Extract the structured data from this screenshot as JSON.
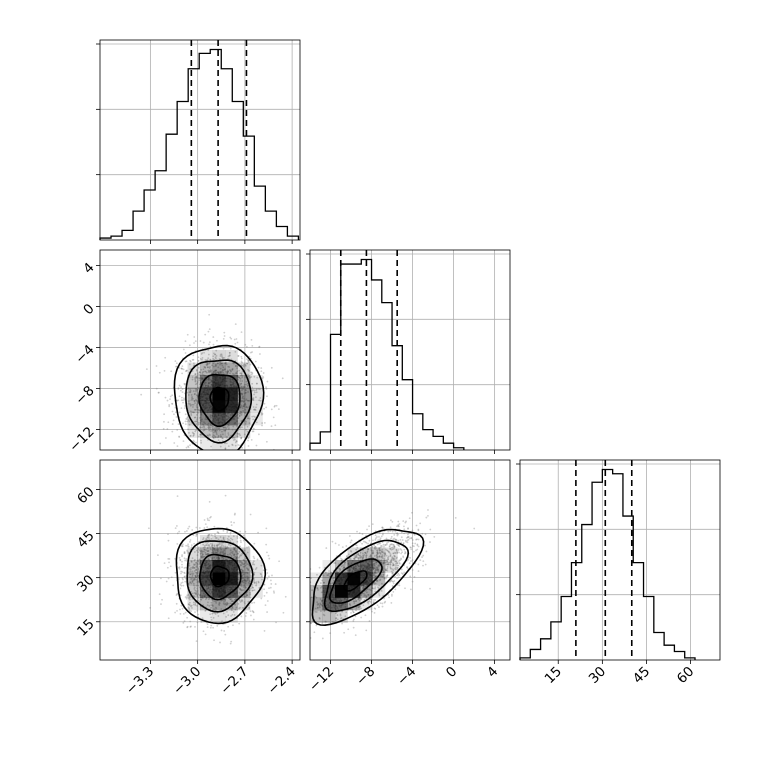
{
  "chart_data": {
    "type": "corner",
    "title": "",
    "parameters": [
      {
        "index": 0,
        "range": [
          -3.62,
          -2.35
        ],
        "ticks": [
          -3.3,
          -3.0,
          -2.7,
          -2.4
        ],
        "tick_labels": [
          "−3.3",
          "−3.0",
          "−2.7",
          "−2.4"
        ],
        "quantiles": [
          -3.04,
          -2.87,
          -2.69
        ],
        "hist_bins": [
          -3.62,
          -3.55,
          -3.48,
          -3.41,
          -3.34,
          -3.27,
          -3.2,
          -3.13,
          -3.06,
          -2.99,
          -2.92,
          -2.85,
          -2.78,
          -2.71,
          -2.64,
          -2.57,
          -2.5,
          -2.43,
          -2.36
        ],
        "hist_counts": [
          1,
          2,
          5,
          15,
          26,
          36,
          55,
          72,
          89,
          97,
          99,
          89,
          72,
          54,
          28,
          15,
          7,
          2
        ]
      },
      {
        "index": 1,
        "range": [
          -14.0,
          5.5
        ],
        "ticks": [
          -12,
          -8,
          -4,
          0,
          4
        ],
        "tick_labels": [
          "−12",
          "−8",
          "−4",
          "0",
          "4"
        ],
        "quantiles": [
          -11.0,
          -8.5,
          -5.5
        ],
        "hist_bins": [
          -14.0,
          -13.0,
          -12.0,
          -11.0,
          -10.0,
          -9.0,
          -8.0,
          -7.0,
          -6.0,
          -5.0,
          -4.0,
          -3.0,
          -2.0,
          -1.0,
          0.0,
          1.0
        ],
        "hist_counts": [
          3,
          8,
          51,
          82,
          82,
          84,
          75,
          65,
          46,
          31,
          16,
          9,
          6,
          3,
          1
        ]
      },
      {
        "index": 2,
        "range": [
          2,
          70
        ],
        "ticks": [
          15,
          30,
          45,
          60
        ],
        "tick_labels": [
          "15",
          "30",
          "45",
          "60"
        ],
        "quantiles": [
          21,
          31,
          40
        ],
        "hist_bins": [
          2,
          5.5,
          9,
          12.5,
          16,
          19.5,
          23,
          26.5,
          30,
          33.5,
          37,
          40.5,
          44,
          47.5,
          51,
          54.5,
          58,
          61.5
        ],
        "hist_counts": [
          1,
          5,
          10,
          18,
          30,
          46,
          64,
          84,
          90,
          88,
          68,
          46,
          30,
          13,
          7,
          4,
          1
        ]
      }
    ],
    "density_panels": [
      {
        "x": 0,
        "y": 1,
        "center": [
          -2.87,
          -9.0
        ],
        "spread": [
          0.13,
          2.5
        ],
        "corr": 0.0,
        "peak_density": [
          -2.85,
          -9.0
        ]
      },
      {
        "x": 0,
        "y": 2,
        "center": [
          -2.87,
          31.0
        ],
        "spread": [
          0.13,
          7.5
        ],
        "corr": 0.0,
        "peak_density": [
          -2.85,
          30.0
        ]
      },
      {
        "x": 1,
        "y": 2,
        "center": [
          -8.7,
          31.0
        ],
        "spread": [
          2.5,
          7.5
        ],
        "corr": 0.65,
        "peak_density": [
          -10.5,
          27.0
        ]
      }
    ],
    "grid": true,
    "legend": "none"
  }
}
